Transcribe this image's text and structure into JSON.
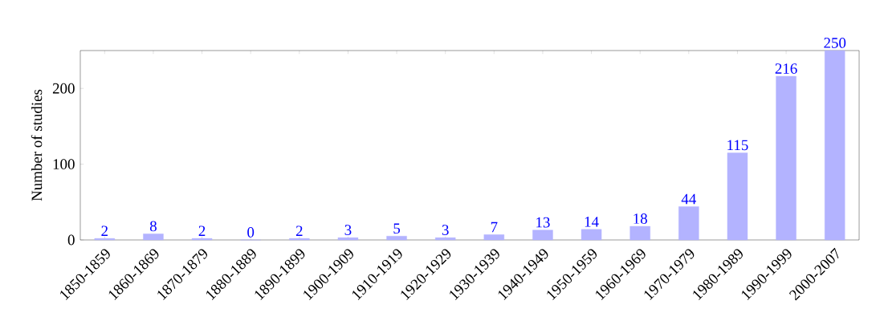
{
  "chart_data": {
    "type": "bar",
    "ylabel": "Number of studies",
    "categories": [
      "1850-1859",
      "1860-1869",
      "1870-1879",
      "1880-1889",
      "1890-1899",
      "1900-1909",
      "1910-1919",
      "1920-1929",
      "1930-1939",
      "1940-1949",
      "1950-1959",
      "1960-1969",
      "1970-1979",
      "1980-1989",
      "1990-1999",
      "2000-2007"
    ],
    "values": [
      2,
      8,
      2,
      0,
      2,
      3,
      5,
      3,
      7,
      13,
      14,
      18,
      44,
      115,
      216,
      250
    ],
    "color": "#b3b3ff",
    "ylim": [
      0,
      250
    ],
    "yticks": [
      0,
      100,
      200
    ],
    "data_labels": true,
    "grid": false
  }
}
